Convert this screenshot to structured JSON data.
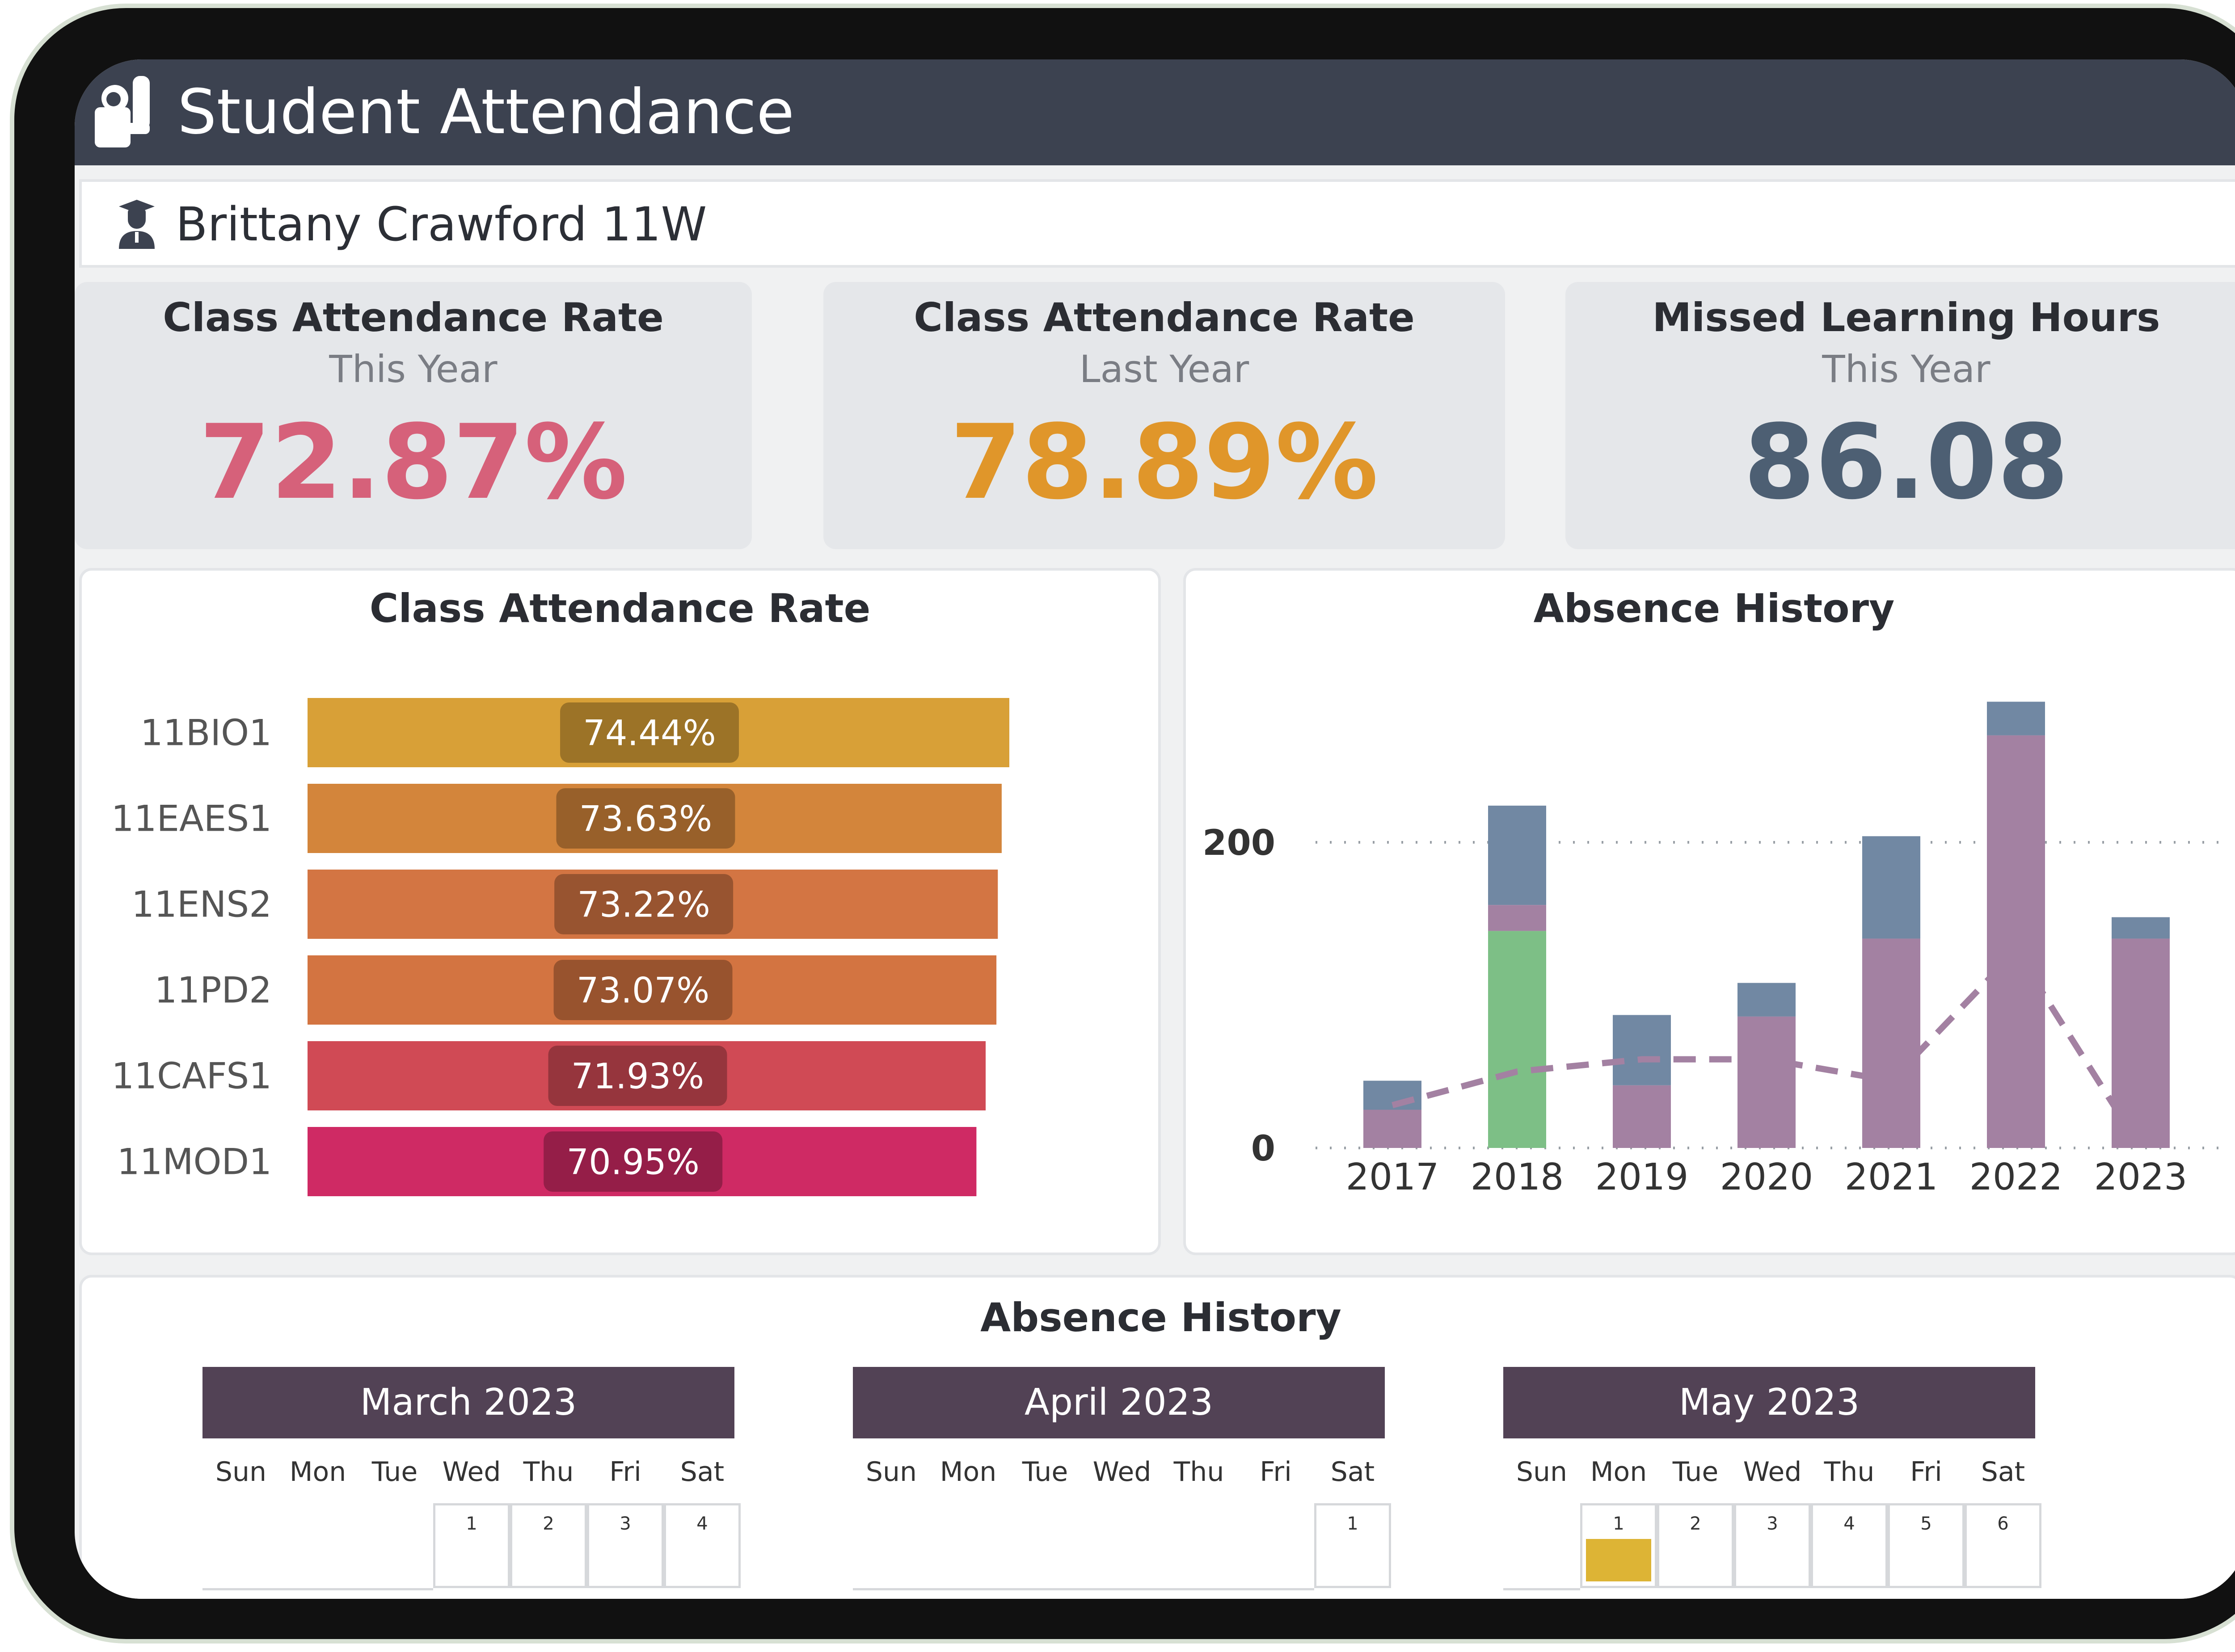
{
  "app": {
    "title": "Student Attendance",
    "icon": "student-attendance-icon"
  },
  "student": {
    "name": "Brittany Crawford 11W",
    "icon": "graduate-icon"
  },
  "kpis": [
    {
      "title": "Class Attendance Rate",
      "subtitle": "This Year",
      "value": "72.87%",
      "color": "#d6617a"
    },
    {
      "title": "Class Attendance Rate",
      "subtitle": "Last Year",
      "value": "78.89%",
      "color": "#e0962a"
    },
    {
      "title": "Missed Learning Hours",
      "subtitle": "This Year",
      "value": "86.08",
      "color": "#4d5f73"
    }
  ],
  "attendance_panel": {
    "title": "Class Attendance Rate"
  },
  "absence_panel": {
    "title": "Absence History"
  },
  "calendar_panel": {
    "title": "Absence History"
  },
  "chart_data": [
    {
      "type": "bar",
      "orientation": "horizontal",
      "title": "Class Attendance Rate",
      "categories": [
        "11BIO1",
        "11EAES1",
        "11ENS2",
        "11PD2",
        "11CAFS1",
        "11MOD1"
      ],
      "values": [
        74.44,
        73.63,
        73.22,
        73.07,
        71.93,
        70.95
      ],
      "labels": [
        "74.44%",
        "73.63%",
        "73.22%",
        "73.07%",
        "71.93%",
        "70.95%"
      ],
      "colors": [
        "#d8a037",
        "#d3853b",
        "#d37543",
        "#d37441",
        "#d04a55",
        "#cf2a64"
      ]
    },
    {
      "type": "bar",
      "stacked": true,
      "title": "Absence History",
      "categories": [
        "2017",
        "2018",
        "2019",
        "2020",
        "2021",
        "2022",
        "2023"
      ],
      "y_ticks": [
        "0",
        "200"
      ],
      "ylim": [
        0,
        300
      ],
      "grid": "dotted horizontal",
      "series": [
        {
          "values": [
            0,
            142,
            0,
            0,
            0,
            0,
            0
          ],
          "color": "#7dbf86"
        },
        {
          "values": [
            25,
            17,
            41,
            86,
            137,
            270,
            137
          ],
          "color": "#a381a2"
        },
        {
          "values": [
            19,
            65,
            46,
            22,
            67,
            22,
            14
          ],
          "color": "#7188a3"
        }
      ],
      "trend": {
        "values": [
          28,
          50,
          58,
          58,
          44,
          129,
          0
        ],
        "color": "#a381a2",
        "style": "dashed"
      }
    }
  ],
  "calendars": [
    {
      "month": "March 2023",
      "days": [
        "Sun",
        "Mon",
        "Tue",
        "Wed",
        "Thu",
        "Fri",
        "Sat"
      ],
      "first_week": [
        "",
        "",
        "",
        "1",
        "2",
        "3",
        "4"
      ],
      "highlighted": []
    },
    {
      "month": "April 2023",
      "days": [
        "Sun",
        "Mon",
        "Tue",
        "Wed",
        "Thu",
        "Fri",
        "Sat"
      ],
      "first_week": [
        "",
        "",
        "",
        "",
        "",
        "",
        "1"
      ],
      "highlighted": []
    },
    {
      "month": "May 2023",
      "days": [
        "Sun",
        "Mon",
        "Tue",
        "Wed",
        "Thu",
        "Fri",
        "Sat"
      ],
      "first_week": [
        "",
        "1",
        "2",
        "3",
        "4",
        "5",
        "6"
      ],
      "highlighted": [
        "1"
      ],
      "highlight_color": "#ddb435"
    }
  ]
}
